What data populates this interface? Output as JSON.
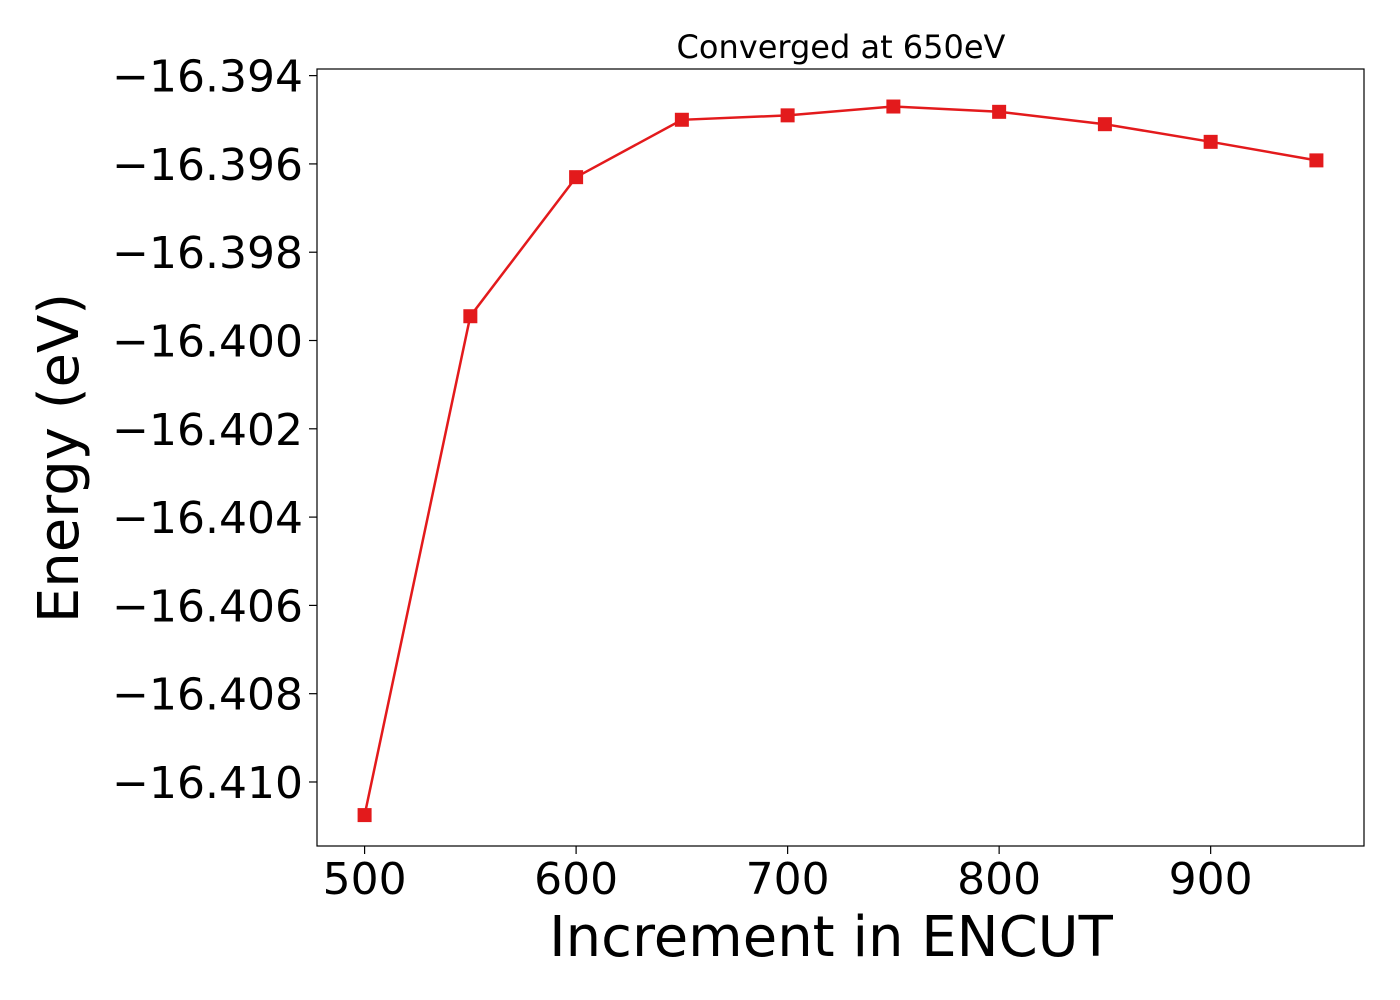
{
  "chart_data": {
    "type": "line",
    "title": "Converged at 650eV",
    "xlabel": "Increment in ENCUT",
    "ylabel": "Energy (eV)",
    "xlim": [
      477.5,
      972.5
    ],
    "ylim": [
      -16.41145,
      -16.39385
    ],
    "xticks": [
      500,
      600,
      700,
      800,
      900
    ],
    "xtick_labels": [
      "500",
      "600",
      "700",
      "800",
      "900"
    ],
    "yticks": [
      -16.394,
      -16.396,
      -16.398,
      -16.4,
      -16.402,
      -16.404,
      -16.406,
      -16.408,
      -16.41
    ],
    "ytick_labels": [
      "−16.394",
      "−16.396",
      "−16.398",
      "−16.400",
      "−16.402",
      "−16.404",
      "−16.406",
      "−16.408",
      "−16.410"
    ],
    "grid": false,
    "series": [
      {
        "color": "#e31a1c",
        "marker": "square",
        "x": [
          500,
          550,
          600,
          650,
          700,
          750,
          800,
          850,
          900,
          950
        ],
        "y": [
          -16.41075,
          -16.39945,
          -16.3963,
          -16.395,
          -16.3949,
          -16.3947,
          -16.39482,
          -16.3951,
          -16.3955,
          -16.39592
        ]
      }
    ]
  }
}
